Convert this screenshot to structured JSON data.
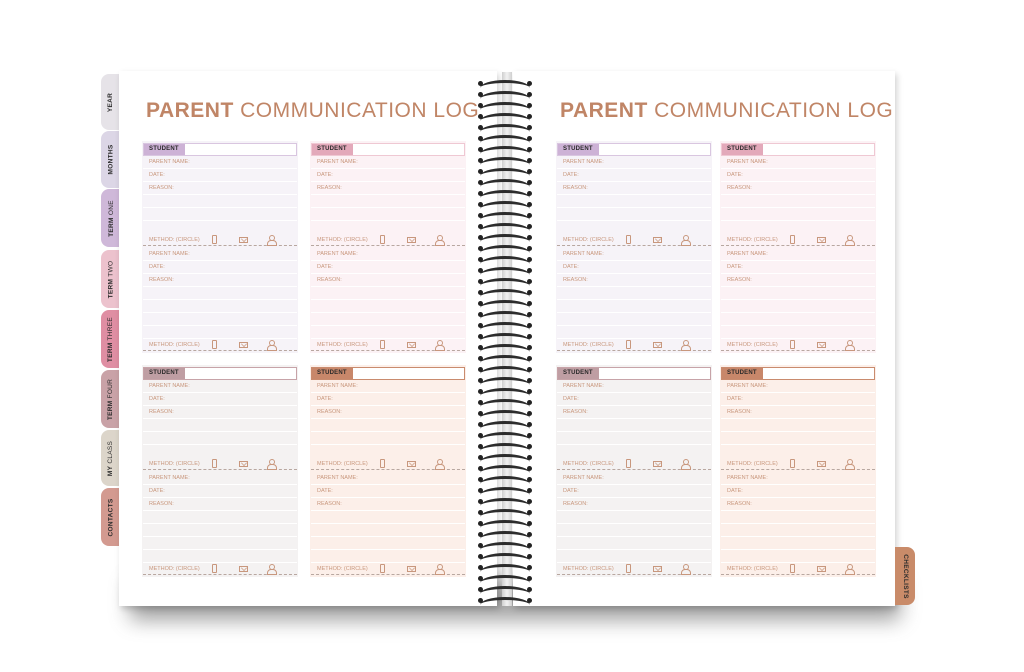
{
  "planner": {
    "left_page": {
      "title_bold": "PARENT",
      "title_light": "COMMUNICATION LOG",
      "cards": [
        {
          "theme": "purple",
          "student_label": "STUDENT"
        },
        {
          "theme": "pink",
          "student_label": "STUDENT"
        },
        {
          "theme": "mauve",
          "student_label": "STUDENT"
        },
        {
          "theme": "peach",
          "student_label": "STUDENT"
        }
      ]
    },
    "right_page": {
      "title_bold": "PARENT",
      "title_light": "COMMUNICATION LOG",
      "cards": [
        {
          "theme": "purple",
          "student_label": "STUDENT"
        },
        {
          "theme": "pink",
          "student_label": "STUDENT"
        },
        {
          "theme": "mauve",
          "student_label": "STUDENT"
        },
        {
          "theme": "peach",
          "student_label": "STUDENT"
        }
      ]
    },
    "fields": {
      "parent_name": "PARENT NAME:",
      "date": "DATE:",
      "reason": "REASON:",
      "method": "METHOD:  (CIRCLE)"
    },
    "method_icons": [
      "phone-icon",
      "mail-icon",
      "person-icon"
    ],
    "left_tabs": [
      {
        "bold": "YEAR",
        "light": "",
        "color": "#e6e3e8"
      },
      {
        "bold": "MONTHS",
        "light": "",
        "color": "#dcd6e6"
      },
      {
        "bold": "TERM",
        "light": "ONE",
        "color": "#cfb8d9"
      },
      {
        "bold": "TERM",
        "light": "TWO",
        "color": "#ecc2cd"
      },
      {
        "bold": "TERM",
        "light": "THREE",
        "color": "#df8ea3"
      },
      {
        "bold": "TERM",
        "light": "FOUR",
        "color": "#c9a2a7"
      },
      {
        "bold": "MY",
        "light": "CLASS",
        "color": "#dcd5ca"
      },
      {
        "bold": "CONTACTS",
        "light": "",
        "color": "#d39a90"
      }
    ],
    "right_tabs": [
      {
        "label": "CHECKLISTS",
        "color": "#c98b69"
      }
    ],
    "themes": {
      "purple": {
        "label_bg": "#cdb2d6",
        "border": "#d9c6e0",
        "card_bg": "#f6f3f8"
      },
      "pink": {
        "label_bg": "#e3a9ba",
        "border": "#efc8d3",
        "card_bg": "#fcf2f5"
      },
      "mauve": {
        "label_bg": "#bf9ea3",
        "border": "#c7a3a8",
        "card_bg": "#f4f2f2"
      },
      "peach": {
        "label_bg": "#c8876a",
        "border": "#c98b6e",
        "card_bg": "#fcefe9"
      }
    }
  }
}
